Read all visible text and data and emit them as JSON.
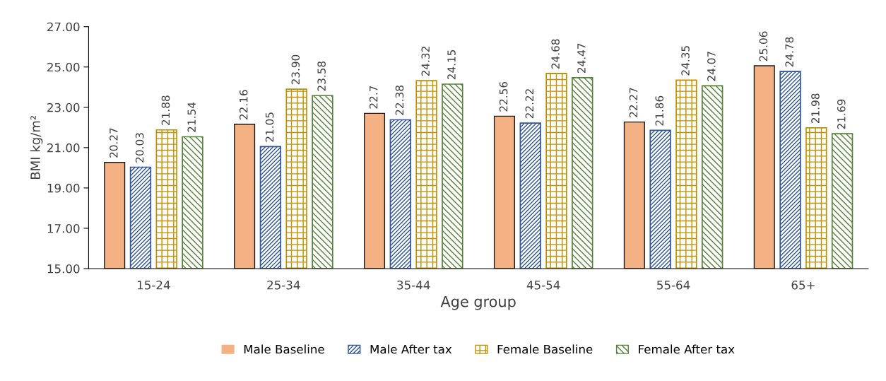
{
  "chart_data": {
    "type": "bar",
    "xlabel": "Age group",
    "ylabel": "BMI kg/m²",
    "categories": [
      "15-24",
      "25-34",
      "35-44",
      "45-54",
      "55-64",
      "65+"
    ],
    "ylim": [
      15,
      27
    ],
    "yticks": [
      {
        "value": 15,
        "label": "15.00"
      },
      {
        "value": 17,
        "label": "17.00"
      },
      {
        "value": 19,
        "label": "19.00"
      },
      {
        "value": 21,
        "label": "21.00"
      },
      {
        "value": 23,
        "label": "23.00"
      },
      {
        "value": 25,
        "label": "25.00"
      },
      {
        "value": 27,
        "label": "27.00"
      }
    ],
    "legend": "bottom",
    "grid": false,
    "series": [
      {
        "name": "Male Baseline",
        "color": "#f4b183",
        "values": [
          20.27,
          22.16,
          22.7,
          22.56,
          22.27,
          25.06
        ],
        "value_labels": [
          "20.27",
          "22.16",
          "22.7",
          "22.56",
          "22.27",
          "25.06"
        ]
      },
      {
        "name": "Male After tax",
        "color": "#2f5597",
        "values": [
          20.03,
          21.05,
          22.38,
          22.22,
          21.86,
          24.78
        ],
        "value_labels": [
          "20.03",
          "21.05",
          "22.38",
          "22.22",
          "21.86",
          "24.78"
        ]
      },
      {
        "name": "Female Baseline",
        "color": "#bf9000",
        "values": [
          21.88,
          23.9,
          24.32,
          24.68,
          24.35,
          21.98
        ],
        "value_labels": [
          "21.88",
          "23.90",
          "24.32",
          "24.68",
          "24.35",
          "21.98"
        ]
      },
      {
        "name": "Female After tax",
        "color": "#548235",
        "values": [
          21.54,
          23.58,
          24.15,
          24.47,
          24.07,
          21.69
        ],
        "value_labels": [
          "21.54",
          "23.58",
          "24.15",
          "24.47",
          "24.07",
          "21.69"
        ]
      }
    ]
  }
}
